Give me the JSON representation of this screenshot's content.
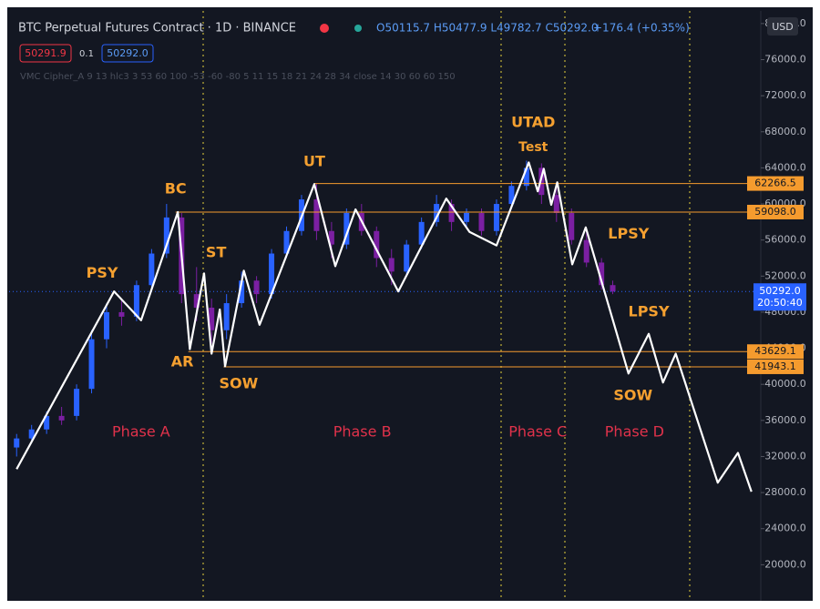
{
  "header": {
    "title": "BTC Perpetual Futures Contract · 1D · BINANCE",
    "ohlc": "O50115.7 H50477.9 L49782.7 C50292.0",
    "change": "+176.4 (+0.35%)",
    "bid": "50291.9",
    "spread": "0.1",
    "ask": "50292.0",
    "indicator": "VMC Cipher_A 9 13 hlc3 3 53 60 100 -53 -60 -80 5 11 15 18 21 24 28 34 close 14 30 60 60 150",
    "currency": "USD"
  },
  "chart_data": {
    "type": "line",
    "xlim": [
      0,
      100
    ],
    "ylim": [
      16000,
      81400
    ],
    "yticks": [
      {
        "value": 20000,
        "label": "20000.0"
      },
      {
        "value": 24000,
        "label": "24000.0"
      },
      {
        "value": 28000,
        "label": "28000.0"
      },
      {
        "value": 32000,
        "label": "32000.0"
      },
      {
        "value": 36000,
        "label": "36000.0"
      },
      {
        "value": 40000,
        "label": "40000.0"
      },
      {
        "value": 44000,
        "label": "44000.0"
      },
      {
        "value": 48000,
        "label": "48000.0"
      },
      {
        "value": 52000,
        "label": "52000.0"
      },
      {
        "value": 56000,
        "label": "56000.0"
      },
      {
        "value": 60000,
        "label": "60000.0"
      },
      {
        "value": 64000,
        "label": "64000.0"
      },
      {
        "value": 68000,
        "label": "68000.0"
      },
      {
        "value": 72000,
        "label": "72000.0"
      },
      {
        "value": 76000,
        "label": "76000.0"
      },
      {
        "value": 80000,
        "label": "80000.0"
      }
    ],
    "x": [
      1,
      14,
      17.6,
      22.5,
      24.1,
      26,
      27,
      28.1,
      28.8,
      31.3,
      33.4,
      40.7,
      43.5,
      46.2,
      51.9,
      58.3,
      61.4,
      65,
      69.3,
      70.5,
      71.3,
      72.3,
      73.1,
      75.1,
      76.9,
      82.6,
      85.3,
      87.2,
      88.9,
      94.5,
      97.2,
      99
    ],
    "series": [
      {
        "color": "#ffffff",
        "values": [
          30600,
          50300,
          47100,
          59100,
          43900,
          52300,
          43400,
          48300,
          42000,
          52600,
          46600,
          62200,
          53100,
          59400,
          50300,
          60600,
          56900,
          55400,
          64600,
          61400,
          63900,
          59900,
          62400,
          53300,
          57400,
          41200,
          45600,
          40200,
          43400,
          29100,
          32400,
          28100
        ]
      }
    ],
    "up_color": "#2962ff",
    "down_color": "#7b1fa2",
    "candles": [
      {
        "x": 1,
        "o": 33000,
        "h": 34500,
        "l": 32000,
        "c": 34000
      },
      {
        "x": 3,
        "o": 34000,
        "h": 35500,
        "l": 33500,
        "c": 35000
      },
      {
        "x": 5,
        "o": 35000,
        "h": 37000,
        "l": 34500,
        "c": 36500
      },
      {
        "x": 7,
        "o": 36500,
        "h": 37500,
        "l": 35500,
        "c": 36000
      },
      {
        "x": 9,
        "o": 36500,
        "h": 40000,
        "l": 36000,
        "c": 39500
      },
      {
        "x": 11,
        "o": 39500,
        "h": 46000,
        "l": 39000,
        "c": 45000
      },
      {
        "x": 13,
        "o": 45000,
        "h": 49000,
        "l": 44000,
        "c": 48000
      },
      {
        "x": 15,
        "o": 48000,
        "h": 49500,
        "l": 46500,
        "c": 47500
      },
      {
        "x": 17,
        "o": 47500,
        "h": 51500,
        "l": 47000,
        "c": 51000
      },
      {
        "x": 19,
        "o": 51000,
        "h": 55000,
        "l": 50500,
        "c": 54500
      },
      {
        "x": 21,
        "o": 54500,
        "h": 60000,
        "l": 54000,
        "c": 58500
      },
      {
        "x": 23,
        "o": 58500,
        "h": 59000,
        "l": 49000,
        "c": 50000
      },
      {
        "x": 25,
        "o": 50000,
        "h": 53000,
        "l": 47000,
        "c": 48500
      },
      {
        "x": 27,
        "o": 48500,
        "h": 49500,
        "l": 44500,
        "c": 46000
      },
      {
        "x": 29,
        "o": 46000,
        "h": 50000,
        "l": 45000,
        "c": 49000
      },
      {
        "x": 31,
        "o": 49000,
        "h": 52500,
        "l": 48500,
        "c": 51500
      },
      {
        "x": 33,
        "o": 51500,
        "h": 52000,
        "l": 49000,
        "c": 50000
      },
      {
        "x": 35,
        "o": 50000,
        "h": 55000,
        "l": 49500,
        "c": 54500
      },
      {
        "x": 37,
        "o": 54500,
        "h": 57500,
        "l": 54000,
        "c": 57000
      },
      {
        "x": 39,
        "o": 57000,
        "h": 61000,
        "l": 56500,
        "c": 60500
      },
      {
        "x": 41,
        "o": 60500,
        "h": 62300,
        "l": 56000,
        "c": 57000
      },
      {
        "x": 43,
        "o": 57000,
        "h": 58000,
        "l": 54000,
        "c": 55500
      },
      {
        "x": 45,
        "o": 55500,
        "h": 59500,
        "l": 55000,
        "c": 59000
      },
      {
        "x": 47,
        "o": 59000,
        "h": 60000,
        "l": 56500,
        "c": 57000
      },
      {
        "x": 49,
        "o": 57000,
        "h": 57500,
        "l": 53000,
        "c": 54000
      },
      {
        "x": 51,
        "o": 54000,
        "h": 55000,
        "l": 51000,
        "c": 52500
      },
      {
        "x": 53,
        "o": 52500,
        "h": 56000,
        "l": 52000,
        "c": 55500
      },
      {
        "x": 55,
        "o": 55500,
        "h": 58500,
        "l": 55000,
        "c": 58000
      },
      {
        "x": 57,
        "o": 58000,
        "h": 61000,
        "l": 57500,
        "c": 60000
      },
      {
        "x": 59,
        "o": 60000,
        "h": 60500,
        "l": 57000,
        "c": 58000
      },
      {
        "x": 61,
        "o": 58000,
        "h": 59500,
        "l": 57500,
        "c": 59000
      },
      {
        "x": 63,
        "o": 59000,
        "h": 59500,
        "l": 56500,
        "c": 57000
      },
      {
        "x": 65,
        "o": 57000,
        "h": 60500,
        "l": 56500,
        "c": 60000
      },
      {
        "x": 67,
        "o": 60000,
        "h": 62500,
        "l": 59500,
        "c": 62000
      },
      {
        "x": 69,
        "o": 62000,
        "h": 64800,
        "l": 61500,
        "c": 64000
      },
      {
        "x": 71,
        "o": 64000,
        "h": 64500,
        "l": 60000,
        "c": 61000
      },
      {
        "x": 73,
        "o": 61000,
        "h": 62000,
        "l": 58000,
        "c": 59000
      },
      {
        "x": 75,
        "o": 59000,
        "h": 59500,
        "l": 55500,
        "c": 56000
      },
      {
        "x": 77,
        "o": 56000,
        "h": 57000,
        "l": 53000,
        "c": 53500
      },
      {
        "x": 79,
        "o": 53500,
        "h": 54000,
        "l": 50500,
        "c": 51000
      },
      {
        "x": 80.5,
        "o": 51000,
        "h": 51500,
        "l": 50000,
        "c": 50292
      }
    ],
    "levels": [
      {
        "value": 62266.5,
        "label": "62266.5",
        "x": 40.7
      },
      {
        "value": 59098,
        "label": "59098.0",
        "x": 22.2
      },
      {
        "value": 43629.1,
        "label": "43629.1",
        "x": 23.9
      },
      {
        "value": 41943.1,
        "label": "41943.1",
        "x": 28.6
      }
    ],
    "level_color": "#f59b2e",
    "last_price": {
      "value": 50292,
      "label": "50292.0",
      "countdown": "20:50:40",
      "color": "#2962ff"
    },
    "annotation_color": "#f5a030",
    "phase_color": "#e0324b",
    "annotations": [
      {
        "text": "PSY",
        "x": 12.4,
        "y": 52300
      },
      {
        "text": "BC",
        "x": 22.2,
        "y": 61600
      },
      {
        "text": "ST",
        "x": 27.6,
        "y": 54550
      },
      {
        "text": "AR",
        "x": 23.1,
        "y": 42450
      },
      {
        "text": "SOW",
        "x": 30.6,
        "y": 40000
      },
      {
        "text": "UT",
        "x": 40.7,
        "y": 64650
      },
      {
        "text": "UTAD",
        "x": 69.9,
        "y": 69000
      },
      {
        "text": "Test",
        "x": 69.9,
        "y": 66250
      },
      {
        "text": "LPSY",
        "x": 82.6,
        "y": 56600
      },
      {
        "text": "LPSY",
        "x": 85.3,
        "y": 48000
      },
      {
        "text": "SOW",
        "x": 83.2,
        "y": 38700
      }
    ],
    "phases": [
      {
        "text": "Phase A",
        "x": 17.6,
        "y": 34670
      },
      {
        "text": "Phase B",
        "x": 47.1,
        "y": 34670
      },
      {
        "text": "Phase C",
        "x": 70.5,
        "y": 34670
      },
      {
        "text": "Phase D",
        "x": 83.4,
        "y": 34670
      }
    ]
  }
}
